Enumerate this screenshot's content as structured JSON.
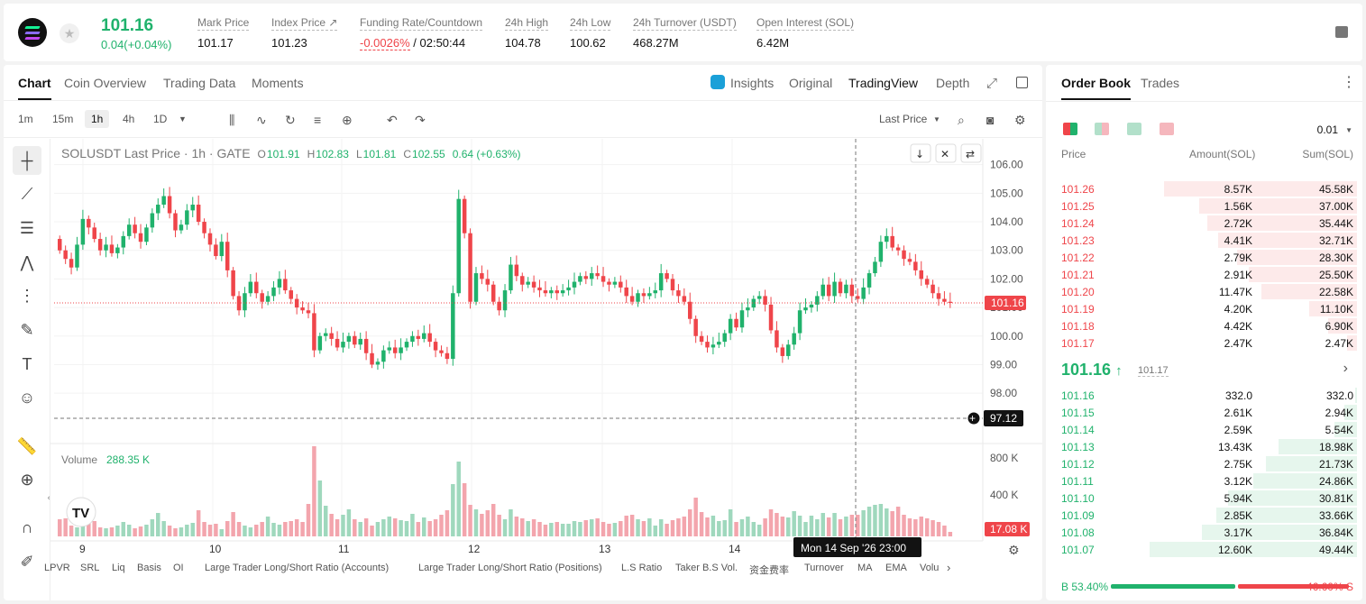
{
  "header": {
    "last_price": "101.16",
    "change": "0.04(+0.04%)",
    "stats": [
      {
        "label": "Mark Price",
        "value": "101.17"
      },
      {
        "label": "Index Price ↗",
        "value": "101.23"
      },
      {
        "label": "Funding Rate/Countdown",
        "value_red": "-0.0026%",
        "value": " / 02:50:44"
      },
      {
        "label": "24h High",
        "value": "104.78"
      },
      {
        "label": "24h Low",
        "value": "100.62"
      },
      {
        "label": "24h Turnover (USDT)",
        "value": "468.27M"
      },
      {
        "label": "Open Interest (SOL)",
        "value": "6.42M"
      }
    ]
  },
  "chart_tabs": [
    "Chart",
    "Coin Overview",
    "Trading Data",
    "Moments"
  ],
  "view_tabs": [
    "Insights",
    "Original",
    "TradingView",
    "Depth"
  ],
  "timeframes": [
    "1m",
    "15m",
    "1h",
    "4h",
    "1D"
  ],
  "last_price_select": "Last Price",
  "legend": {
    "symbol": "SOLUSDT Last Price · 1h · GATE",
    "o": "O",
    "o_val": "101.91",
    "h": "H",
    "h_val": "102.83",
    "l": "L",
    "l_val": "101.81",
    "c": "C",
    "c_val": "102.55",
    "chg": "0.64 (+0.63%)"
  },
  "volume_legend": {
    "label": "Volume",
    "value": "288.35 K"
  },
  "crosshair": {
    "price": "97.12",
    "time": "Mon 14 Sep '26   23:00"
  },
  "bottom_indicators": [
    "LPVR",
    "SRL",
    "Liq",
    "Basis",
    "OI",
    "Large Trader Long/Short Ratio (Accounts)",
    "Large Trader Long/Short Ratio (Positions)",
    "L.S Ratio",
    "Taker B.S Vol.",
    "资金费率",
    "Turnover",
    "MA",
    "EMA",
    "Volu"
  ],
  "chart_data": {
    "type": "candlestick",
    "title": "SOLUSDT Last Price · 1h · GATE",
    "y_ticks": [
      "106.00",
      "105.00",
      "104.00",
      "103.00",
      "102.00",
      "101.00",
      "100.00",
      "99.00",
      "98.00"
    ],
    "ylim": [
      97.12,
      106.4
    ],
    "x_ticks": [
      "9",
      "10",
      "11",
      "12",
      "13",
      "14"
    ],
    "last_price_label": "101.16",
    "volume_ticks": [
      "800 K",
      "400 K"
    ],
    "volume_last_label": "17.08 K",
    "closes": [
      103.0,
      102.7,
      102.4,
      103.2,
      104.1,
      103.8,
      103.4,
      103.0,
      103.2,
      102.9,
      103.1,
      103.5,
      103.9,
      103.6,
      103.3,
      103.8,
      104.3,
      104.6,
      104.9,
      104.3,
      103.7,
      103.9,
      104.4,
      104.6,
      104.0,
      103.6,
      103.2,
      102.8,
      103.3,
      102.3,
      101.4,
      100.9,
      101.5,
      101.9,
      101.5,
      101.2,
      101.4,
      101.7,
      102.0,
      101.6,
      101.3,
      101.0,
      100.9,
      100.8,
      99.5,
      100.0,
      100.1,
      99.9,
      99.6,
      99.8,
      100.0,
      99.7,
      99.9,
      99.4,
      99.0,
      99.1,
      99.5,
      99.6,
      99.4,
      99.6,
      99.8,
      100.0,
      99.9,
      100.1,
      99.8,
      99.5,
      99.4,
      99.2,
      101.5,
      104.8,
      103.6,
      101.2,
      102.2,
      102.0,
      101.8,
      101.2,
      100.9,
      101.6,
      102.5,
      102.1,
      101.8,
      101.9,
      101.7,
      101.6,
      101.5,
      101.6,
      101.5,
      101.6,
      101.7,
      101.9,
      102.1,
      102.0,
      102.2,
      102.1,
      101.9,
      101.8,
      101.9,
      101.7,
      101.4,
      101.2,
      101.5,
      101.4,
      101.5,
      101.6,
      102.2,
      102.0,
      101.6,
      101.4,
      101.2,
      100.6,
      100.0,
      99.8,
      99.6,
      99.7,
      99.8,
      100.1,
      100.6,
      100.3,
      100.9,
      101.0,
      101.3,
      101.4,
      101.1,
      100.2,
      99.6,
      99.3,
      99.7,
      100.1,
      100.9,
      101.0,
      101.1,
      101.4,
      101.8,
      101.4,
      101.9,
      101.5,
      101.8,
      101.4,
      101.3,
      101.7,
      102.2,
      102.6,
      103.3,
      103.5,
      103.1,
      103.0,
      102.7,
      102.6,
      102.3,
      102.0,
      101.8,
      101.5,
      101.3,
      101.2,
      101.16
    ],
    "volume_levels": [
      0.19,
      0.2,
      0.12,
      0.1,
      0.3,
      0.25,
      0.17,
      0.1,
      0.09,
      0.1,
      0.12,
      0.16,
      0.13,
      0.09,
      0.11,
      0.13,
      0.19,
      0.26,
      0.17,
      0.12,
      0.09,
      0.1,
      0.13,
      0.15,
      0.29,
      0.16,
      0.13,
      0.14,
      0.08,
      0.17,
      0.27,
      0.16,
      0.12,
      0.1,
      0.13,
      0.16,
      0.22,
      0.15,
      0.13,
      0.16,
      0.17,
      0.19,
      0.16,
      0.36,
      1.0,
      0.62,
      0.34,
      0.25,
      0.19,
      0.24,
      0.3,
      0.19,
      0.16,
      0.2,
      0.12,
      0.16,
      0.19,
      0.22,
      0.2,
      0.18,
      0.17,
      0.25,
      0.16,
      0.21,
      0.17,
      0.19,
      0.24,
      0.29,
      0.58,
      0.83,
      0.59,
      0.35,
      0.3,
      0.25,
      0.29,
      0.36,
      0.24,
      0.19,
      0.3,
      0.22,
      0.2,
      0.17,
      0.19,
      0.16,
      0.13,
      0.15,
      0.16,
      0.14,
      0.14,
      0.17,
      0.16,
      0.18,
      0.19,
      0.2,
      0.16,
      0.14,
      0.15,
      0.17,
      0.23,
      0.24,
      0.19,
      0.17,
      0.2,
      0.12,
      0.19,
      0.14,
      0.18,
      0.2,
      0.22,
      0.3,
      0.43,
      0.27,
      0.21,
      0.23,
      0.17,
      0.18,
      0.3,
      0.16,
      0.19,
      0.22,
      0.16,
      0.13,
      0.2,
      0.3,
      0.26,
      0.22,
      0.21,
      0.28,
      0.23,
      0.16,
      0.23,
      0.19,
      0.26,
      0.21,
      0.26,
      0.19,
      0.22,
      0.24,
      0.24,
      0.29,
      0.33,
      0.35,
      0.36,
      0.31,
      0.28,
      0.33,
      0.24,
      0.2,
      0.19,
      0.22,
      0.2,
      0.18,
      0.16,
      0.12,
      0.05
    ]
  },
  "orderbook": {
    "tabs": [
      "Order Book",
      "Trades"
    ],
    "precision": "0.01",
    "headers": [
      "Price",
      "Amount(SOL)",
      "Sum(SOL)"
    ],
    "asks": [
      {
        "price": "101.26",
        "amount": "8.57K",
        "sum": "45.58K",
        "depth": 0.93
      },
      {
        "price": "101.25",
        "amount": "1.56K",
        "sum": "37.00K",
        "depth": 0.76
      },
      {
        "price": "101.24",
        "amount": "2.72K",
        "sum": "35.44K",
        "depth": 0.72
      },
      {
        "price": "101.23",
        "amount": "4.41K",
        "sum": "32.71K",
        "depth": 0.67
      },
      {
        "price": "101.22",
        "amount": "2.79K",
        "sum": "28.30K",
        "depth": 0.58
      },
      {
        "price": "101.21",
        "amount": "2.91K",
        "sum": "25.50K",
        "depth": 0.52
      },
      {
        "price": "101.20",
        "amount": "11.47K",
        "sum": "22.58K",
        "depth": 0.46
      },
      {
        "price": "101.19",
        "amount": "4.20K",
        "sum": "11.10K",
        "depth": 0.23
      },
      {
        "price": "101.18",
        "amount": "4.42K",
        "sum": "6.90K",
        "depth": 0.14
      },
      {
        "price": "101.17",
        "amount": "2.47K",
        "sum": "2.47K",
        "depth": 0.05
      }
    ],
    "mid_price": "101.16",
    "mid_mark": "101.17",
    "bids": [
      {
        "price": "101.16",
        "amount": "332.0",
        "sum": "332.0",
        "depth": 0.01
      },
      {
        "price": "101.15",
        "amount": "2.61K",
        "sum": "2.94K",
        "depth": 0.06
      },
      {
        "price": "101.14",
        "amount": "2.59K",
        "sum": "5.54K",
        "depth": 0.11
      },
      {
        "price": "101.13",
        "amount": "13.43K",
        "sum": "18.98K",
        "depth": 0.38
      },
      {
        "price": "101.12",
        "amount": "2.75K",
        "sum": "21.73K",
        "depth": 0.44
      },
      {
        "price": "101.11",
        "amount": "3.12K",
        "sum": "24.86K",
        "depth": 0.5
      },
      {
        "price": "101.10",
        "amount": "5.94K",
        "sum": "30.81K",
        "depth": 0.62
      },
      {
        "price": "101.09",
        "amount": "2.85K",
        "sum": "33.66K",
        "depth": 0.68
      },
      {
        "price": "101.08",
        "amount": "3.17K",
        "sum": "36.84K",
        "depth": 0.75
      },
      {
        "price": "101.07",
        "amount": "12.60K",
        "sum": "49.44K",
        "depth": 1.0
      }
    ],
    "buy_label": "B",
    "buy_pct": "53.40%",
    "sell_label": "S",
    "sell_pct": "46.60%",
    "buy_ratio": 0.534
  },
  "colors": {
    "up": "#20b26c",
    "down": "#ef454a",
    "up_soft": "#9fd8bd",
    "down_soft": "#f3a5ad"
  }
}
